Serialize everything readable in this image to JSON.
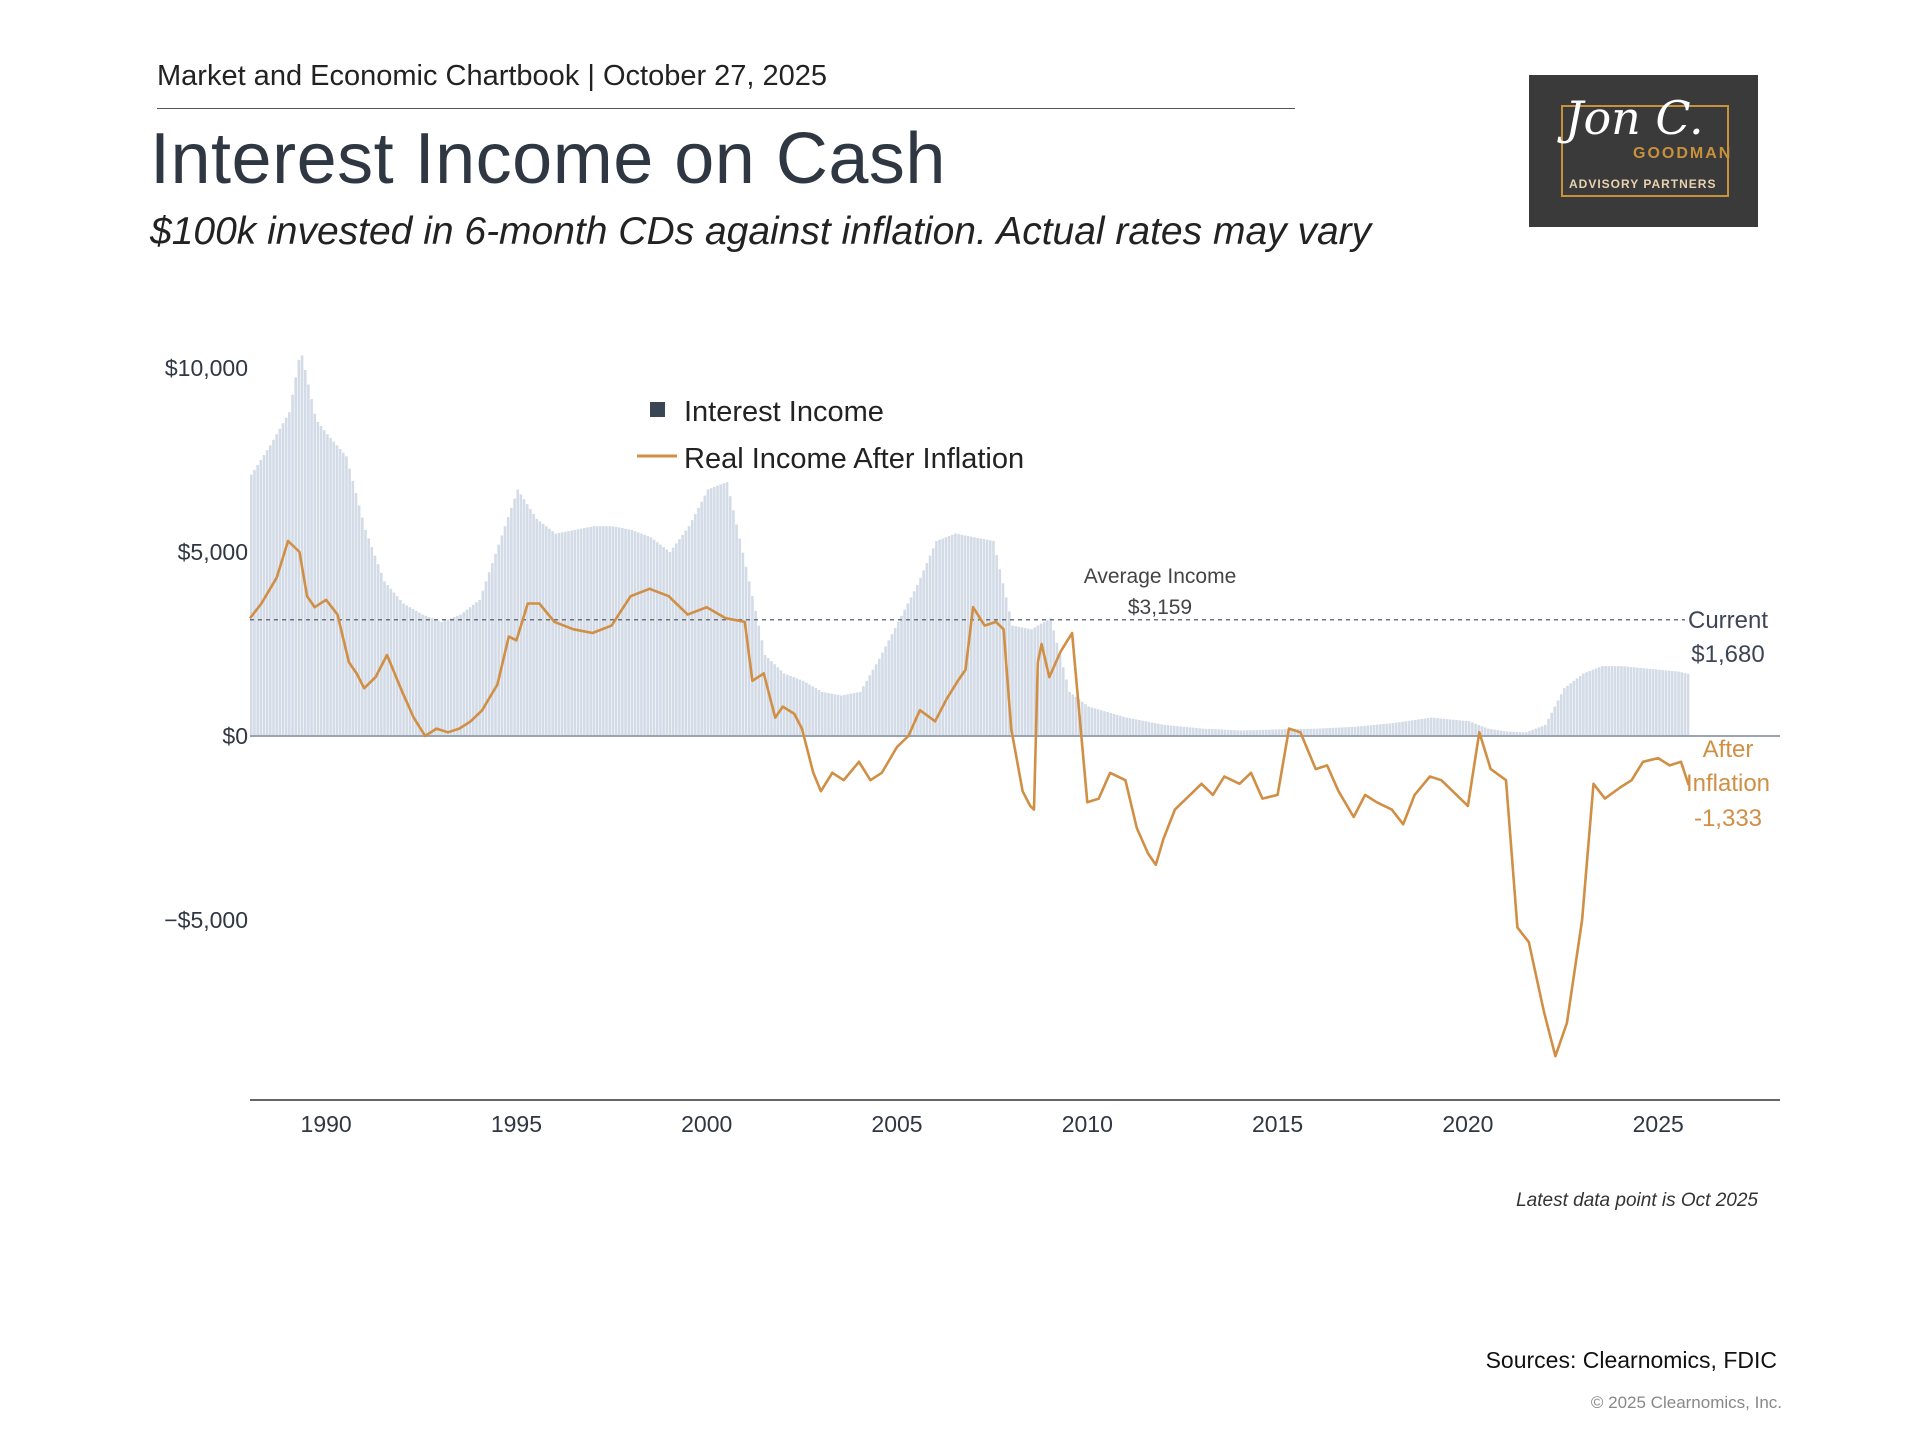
{
  "header": {
    "line": "Market and Economic Chartbook | October 27, 2025",
    "title": "Interest Income on Cash",
    "subtitle": "$100k invested in 6-month CDs against inflation. Actual rates may vary"
  },
  "logo": {
    "script_text": "Jon C.",
    "name": "GOODMAN",
    "tagline": "ADVISORY PARTNERS"
  },
  "colors": {
    "bars": "#d3dbe7",
    "line": "#d08f45",
    "text": "#2f3742",
    "zero_line": "#9aa4b1",
    "avg_line": "#6b7480",
    "logo_bg": "#3a3a3a",
    "logo_gold": "#c8923d"
  },
  "chart_data": {
    "type": "area",
    "title": "Interest Income on Cash",
    "xlabel": "",
    "ylabel": "",
    "xlim": [
      1988.0,
      2028.2
    ],
    "ylim": [
      -9800,
      10500
    ],
    "x_ticks": [
      1990,
      1995,
      2000,
      2005,
      2010,
      2015,
      2020,
      2025
    ],
    "x_tick_labels": [
      "1990",
      "1995",
      "2000",
      "2005",
      "2010",
      "2015",
      "2020",
      "2025"
    ],
    "y_ticks": [
      10000,
      5000,
      0,
      -5000
    ],
    "y_tick_labels": [
      "$10,000",
      "$5,000",
      "$0",
      "−$5,000"
    ],
    "legend": {
      "position": "top-center",
      "entries": [
        "Interest Income",
        "Real Income After Inflation"
      ]
    },
    "average": {
      "value": 3159,
      "label": "Average Income",
      "value_label": "$3,159"
    },
    "current_label": {
      "line1": "Current",
      "line2": "$1,680"
    },
    "after_inflation_label": {
      "line1": "After",
      "line2": "Inflation",
      "line3": "-1,333"
    },
    "series": [
      {
        "name": "Interest Income",
        "type": "bars",
        "x": [
          1988.0,
          1988.5,
          1989.0,
          1989.3,
          1989.7,
          1990.0,
          1990.5,
          1991.0,
          1991.5,
          1992.0,
          1992.5,
          1993.0,
          1993.5,
          1994.0,
          1994.5,
          1995.0,
          1995.5,
          1996.0,
          1996.5,
          1997.0,
          1997.5,
          1998.0,
          1998.5,
          1999.0,
          1999.5,
          2000.0,
          2000.5,
          2001.0,
          2001.5,
          2002.0,
          2002.5,
          2003.0,
          2003.5,
          2004.0,
          2004.5,
          2005.0,
          2005.5,
          2006.0,
          2006.5,
          2007.0,
          2007.5,
          2008.0,
          2008.5,
          2009.0,
          2009.5,
          2010.0,
          2011.0,
          2012.0,
          2013.0,
          2014.0,
          2015.0,
          2016.0,
          2017.0,
          2018.0,
          2019.0,
          2019.5,
          2020.0,
          2020.5,
          2021.0,
          2021.5,
          2022.0,
          2022.5,
          2023.0,
          2023.5,
          2024.0,
          2024.5,
          2025.0,
          2025.5,
          2025.8
        ],
        "values": [
          7100,
          7900,
          8800,
          10500,
          8600,
          8200,
          7600,
          5600,
          4200,
          3600,
          3300,
          3100,
          3300,
          3700,
          5200,
          6700,
          5900,
          5500,
          5600,
          5700,
          5700,
          5600,
          5400,
          5000,
          5700,
          6700,
          6900,
          4600,
          2200,
          1700,
          1500,
          1200,
          1100,
          1200,
          2100,
          3100,
          4100,
          5300,
          5500,
          5400,
          5300,
          3000,
          2900,
          3200,
          1200,
          800,
          500,
          300,
          200,
          150,
          180,
          200,
          250,
          350,
          500,
          450,
          400,
          200,
          120,
          100,
          300,
          1300,
          1700,
          1900,
          1900,
          1850,
          1800,
          1750,
          1680
        ]
      },
      {
        "name": "Real Income After Inflation",
        "type": "line",
        "x": [
          1988.0,
          1988.3,
          1988.7,
          1989.0,
          1989.3,
          1989.5,
          1989.7,
          1990.0,
          1990.3,
          1990.6,
          1990.8,
          1991.0,
          1991.3,
          1991.6,
          1992.0,
          1992.3,
          1992.6,
          1992.9,
          1993.2,
          1993.5,
          1993.8,
          1994.1,
          1994.5,
          1994.8,
          1995.0,
          1995.3,
          1995.6,
          1996.0,
          1996.5,
          1997.0,
          1997.5,
          1998.0,
          1998.5,
          1999.0,
          1999.5,
          2000.0,
          2000.5,
          2001.0,
          2001.2,
          2001.5,
          2001.8,
          2002.0,
          2002.3,
          2002.5,
          2002.8,
          2003.0,
          2003.3,
          2003.6,
          2004.0,
          2004.3,
          2004.6,
          2005.0,
          2005.3,
          2005.6,
          2006.0,
          2006.3,
          2006.6,
          2006.8,
          2007.0,
          2007.3,
          2007.6,
          2007.8,
          2008.0,
          2008.3,
          2008.5,
          2008.6,
          2008.7,
          2008.8,
          2009.0,
          2009.3,
          2009.6,
          2009.8,
          2010.0,
          2010.3,
          2010.6,
          2011.0,
          2011.3,
          2011.6,
          2011.8,
          2012.0,
          2012.3,
          2012.6,
          2013.0,
          2013.3,
          2013.6,
          2014.0,
          2014.3,
          2014.6,
          2015.0,
          2015.3,
          2015.6,
          2016.0,
          2016.3,
          2016.6,
          2017.0,
          2017.3,
          2017.6,
          2018.0,
          2018.3,
          2018.6,
          2019.0,
          2019.3,
          2019.6,
          2020.0,
          2020.3,
          2020.6,
          2021.0,
          2021.3,
          2021.6,
          2022.0,
          2022.3,
          2022.6,
          2023.0,
          2023.3,
          2023.6,
          2024.0,
          2024.3,
          2024.6,
          2025.0,
          2025.3,
          2025.6,
          2025.8
        ],
        "values": [
          3200,
          3600,
          4300,
          5300,
          5000,
          3800,
          3500,
          3700,
          3300,
          2000,
          1700,
          1300,
          1600,
          2200,
          1200,
          500,
          0,
          200,
          100,
          200,
          400,
          700,
          1400,
          2700,
          2600,
          3600,
          3600,
          3100,
          2900,
          2800,
          3000,
          3800,
          4000,
          3800,
          3300,
          3500,
          3200,
          3100,
          1500,
          1700,
          500,
          800,
          600,
          200,
          -1000,
          -1500,
          -1000,
          -1200,
          -700,
          -1200,
          -1000,
          -300,
          0,
          700,
          400,
          1000,
          1500,
          1800,
          3500,
          3000,
          3100,
          2900,
          200,
          -1500,
          -1900,
          -2000,
          2000,
          2500,
          1600,
          2300,
          2800,
          500,
          -1800,
          -1700,
          -1000,
          -1200,
          -2500,
          -3200,
          -3500,
          -2800,
          -2000,
          -1700,
          -1300,
          -1600,
          -1100,
          -1300,
          -1000,
          -1700,
          -1600,
          200,
          100,
          -900,
          -800,
          -1500,
          -2200,
          -1600,
          -1800,
          -2000,
          -2400,
          -1600,
          -1100,
          -1200,
          -1500,
          -1900,
          100,
          -900,
          -1200,
          -5200,
          -5600,
          -7500,
          -8700,
          -7800,
          -5000,
          -1300,
          -1700,
          -1400,
          -1200,
          -700,
          -600,
          -800,
          -700,
          -1333
        ]
      }
    ]
  },
  "footnote": "Latest data point is Oct 2025",
  "sources": "Sources: Clearnomics, FDIC",
  "copyright": "© 2025 Clearnomics, Inc."
}
